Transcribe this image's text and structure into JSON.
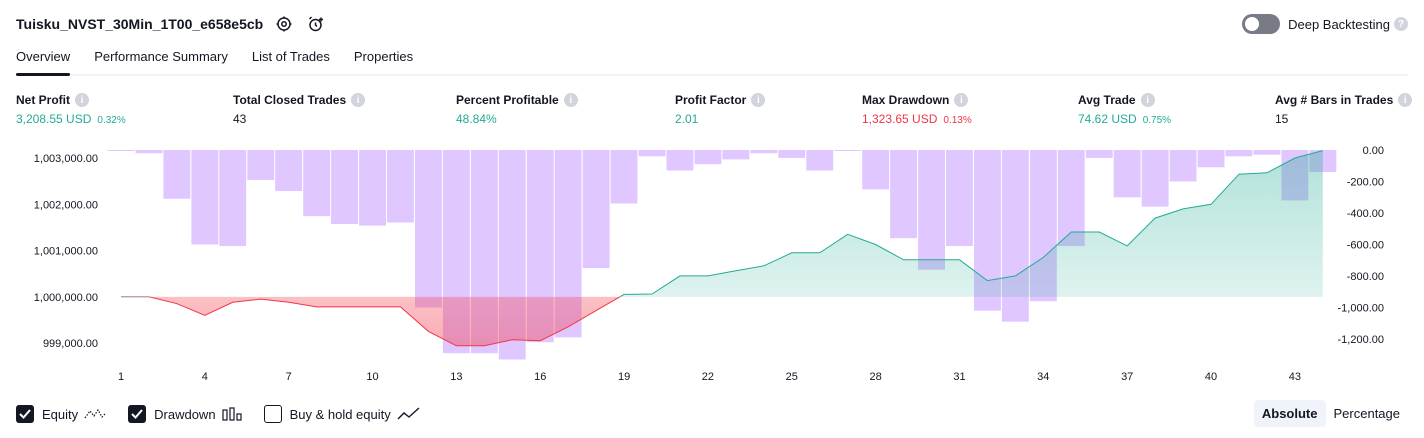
{
  "header": {
    "title": "Tuisku_NVST_30Min_1T00_e658e5cb",
    "settings_icon": "gear-icon",
    "alert_icon": "add-alert-icon",
    "deep_backtesting_label": "Deep Backtesting",
    "deep_backtesting_enabled": false,
    "help_glyph": "?"
  },
  "tabs": [
    {
      "label": "Overview",
      "active": true
    },
    {
      "label": "Performance Summary",
      "active": false
    },
    {
      "label": "List of Trades",
      "active": false
    },
    {
      "label": "Properties",
      "active": false
    }
  ],
  "stats": [
    {
      "label": "Net Profit",
      "value": "3,208.55 USD",
      "pct": "0.32%",
      "color": "#22ab94"
    },
    {
      "label": "Total Closed Trades",
      "value": "43",
      "pct": "",
      "color": "#131722"
    },
    {
      "label": "Percent Profitable",
      "value": "48.84%",
      "pct": "",
      "color": "#22ab94"
    },
    {
      "label": "Profit Factor",
      "value": "2.01",
      "pct": "",
      "color": "#22ab94"
    },
    {
      "label": "Max Drawdown",
      "value": "1,323.65 USD",
      "pct": "0.13%",
      "color": "#f23645"
    },
    {
      "label": "Avg Trade",
      "value": "74.62 USD",
      "pct": "0.75%",
      "color": "#22ab94"
    },
    {
      "label": "Avg # Bars in Trades",
      "value": "15",
      "pct": "",
      "color": "#131722"
    }
  ],
  "chart_data": {
    "type": "line",
    "equity_color": "#22ab94",
    "loss_color": "#f23645",
    "drawdown_color": "#cfa9ff",
    "x_ticks": [
      "1",
      "4",
      "7",
      "10",
      "13",
      "16",
      "19",
      "22",
      "25",
      "28",
      "31",
      "34",
      "37",
      "40",
      "43"
    ],
    "left_axis": {
      "ticks": [
        "1,003,000.00",
        "1,002,000.00",
        "1,001,000.00",
        "1,000,000.00",
        "999,000.00"
      ],
      "ylim": [
        998600,
        1003200
      ]
    },
    "right_axis": {
      "ticks": [
        "0.00",
        "-200.00",
        "-400.00",
        "-600.00",
        "-800.00",
        "-1,000.00",
        "-1,200.00"
      ],
      "ylim": [
        -1400,
        10
      ]
    },
    "equity": [
      1000000,
      1000000,
      999850,
      999600,
      999880,
      999950,
      999880,
      999780,
      999780,
      999780,
      999780,
      999250,
      998940,
      998940,
      999070,
      999050,
      999350,
      999700,
      1000050,
      1000060,
      1000450,
      1000450,
      1000560,
      1000670,
      1000950,
      1000950,
      1001350,
      1001130,
      1000800,
      1000800,
      1000800,
      1000350,
      1000450,
      1000850,
      1001400,
      1001400,
      1001100,
      1001700,
      1001900,
      1002000,
      1002650,
      1002680,
      1003000,
      1003160
    ],
    "drawdown": [
      -5,
      -20,
      -310,
      -600,
      -610,
      -190,
      -260,
      -420,
      -470,
      -480,
      -460,
      -1000,
      -1290,
      -1290,
      -1330,
      -1220,
      -1190,
      -750,
      -340,
      -40,
      -130,
      -90,
      -60,
      -20,
      -50,
      -130,
      -5,
      -250,
      -560,
      -760,
      -610,
      -1020,
      -1090,
      -960,
      -610,
      -50,
      -300,
      -360,
      -200,
      -110,
      -40,
      -30,
      -320,
      -140
    ]
  },
  "legend": [
    {
      "label": "Equity",
      "checked": true,
      "icon": "equity-line-icon"
    },
    {
      "label": "Drawdown",
      "checked": true,
      "icon": "drawdown-bars-icon"
    },
    {
      "label": "Buy & hold equity",
      "checked": false,
      "icon": "buy-hold-line-icon"
    }
  ],
  "mode": {
    "absolute_label": "Absolute",
    "percentage_label": "Percentage",
    "active": "absolute"
  }
}
